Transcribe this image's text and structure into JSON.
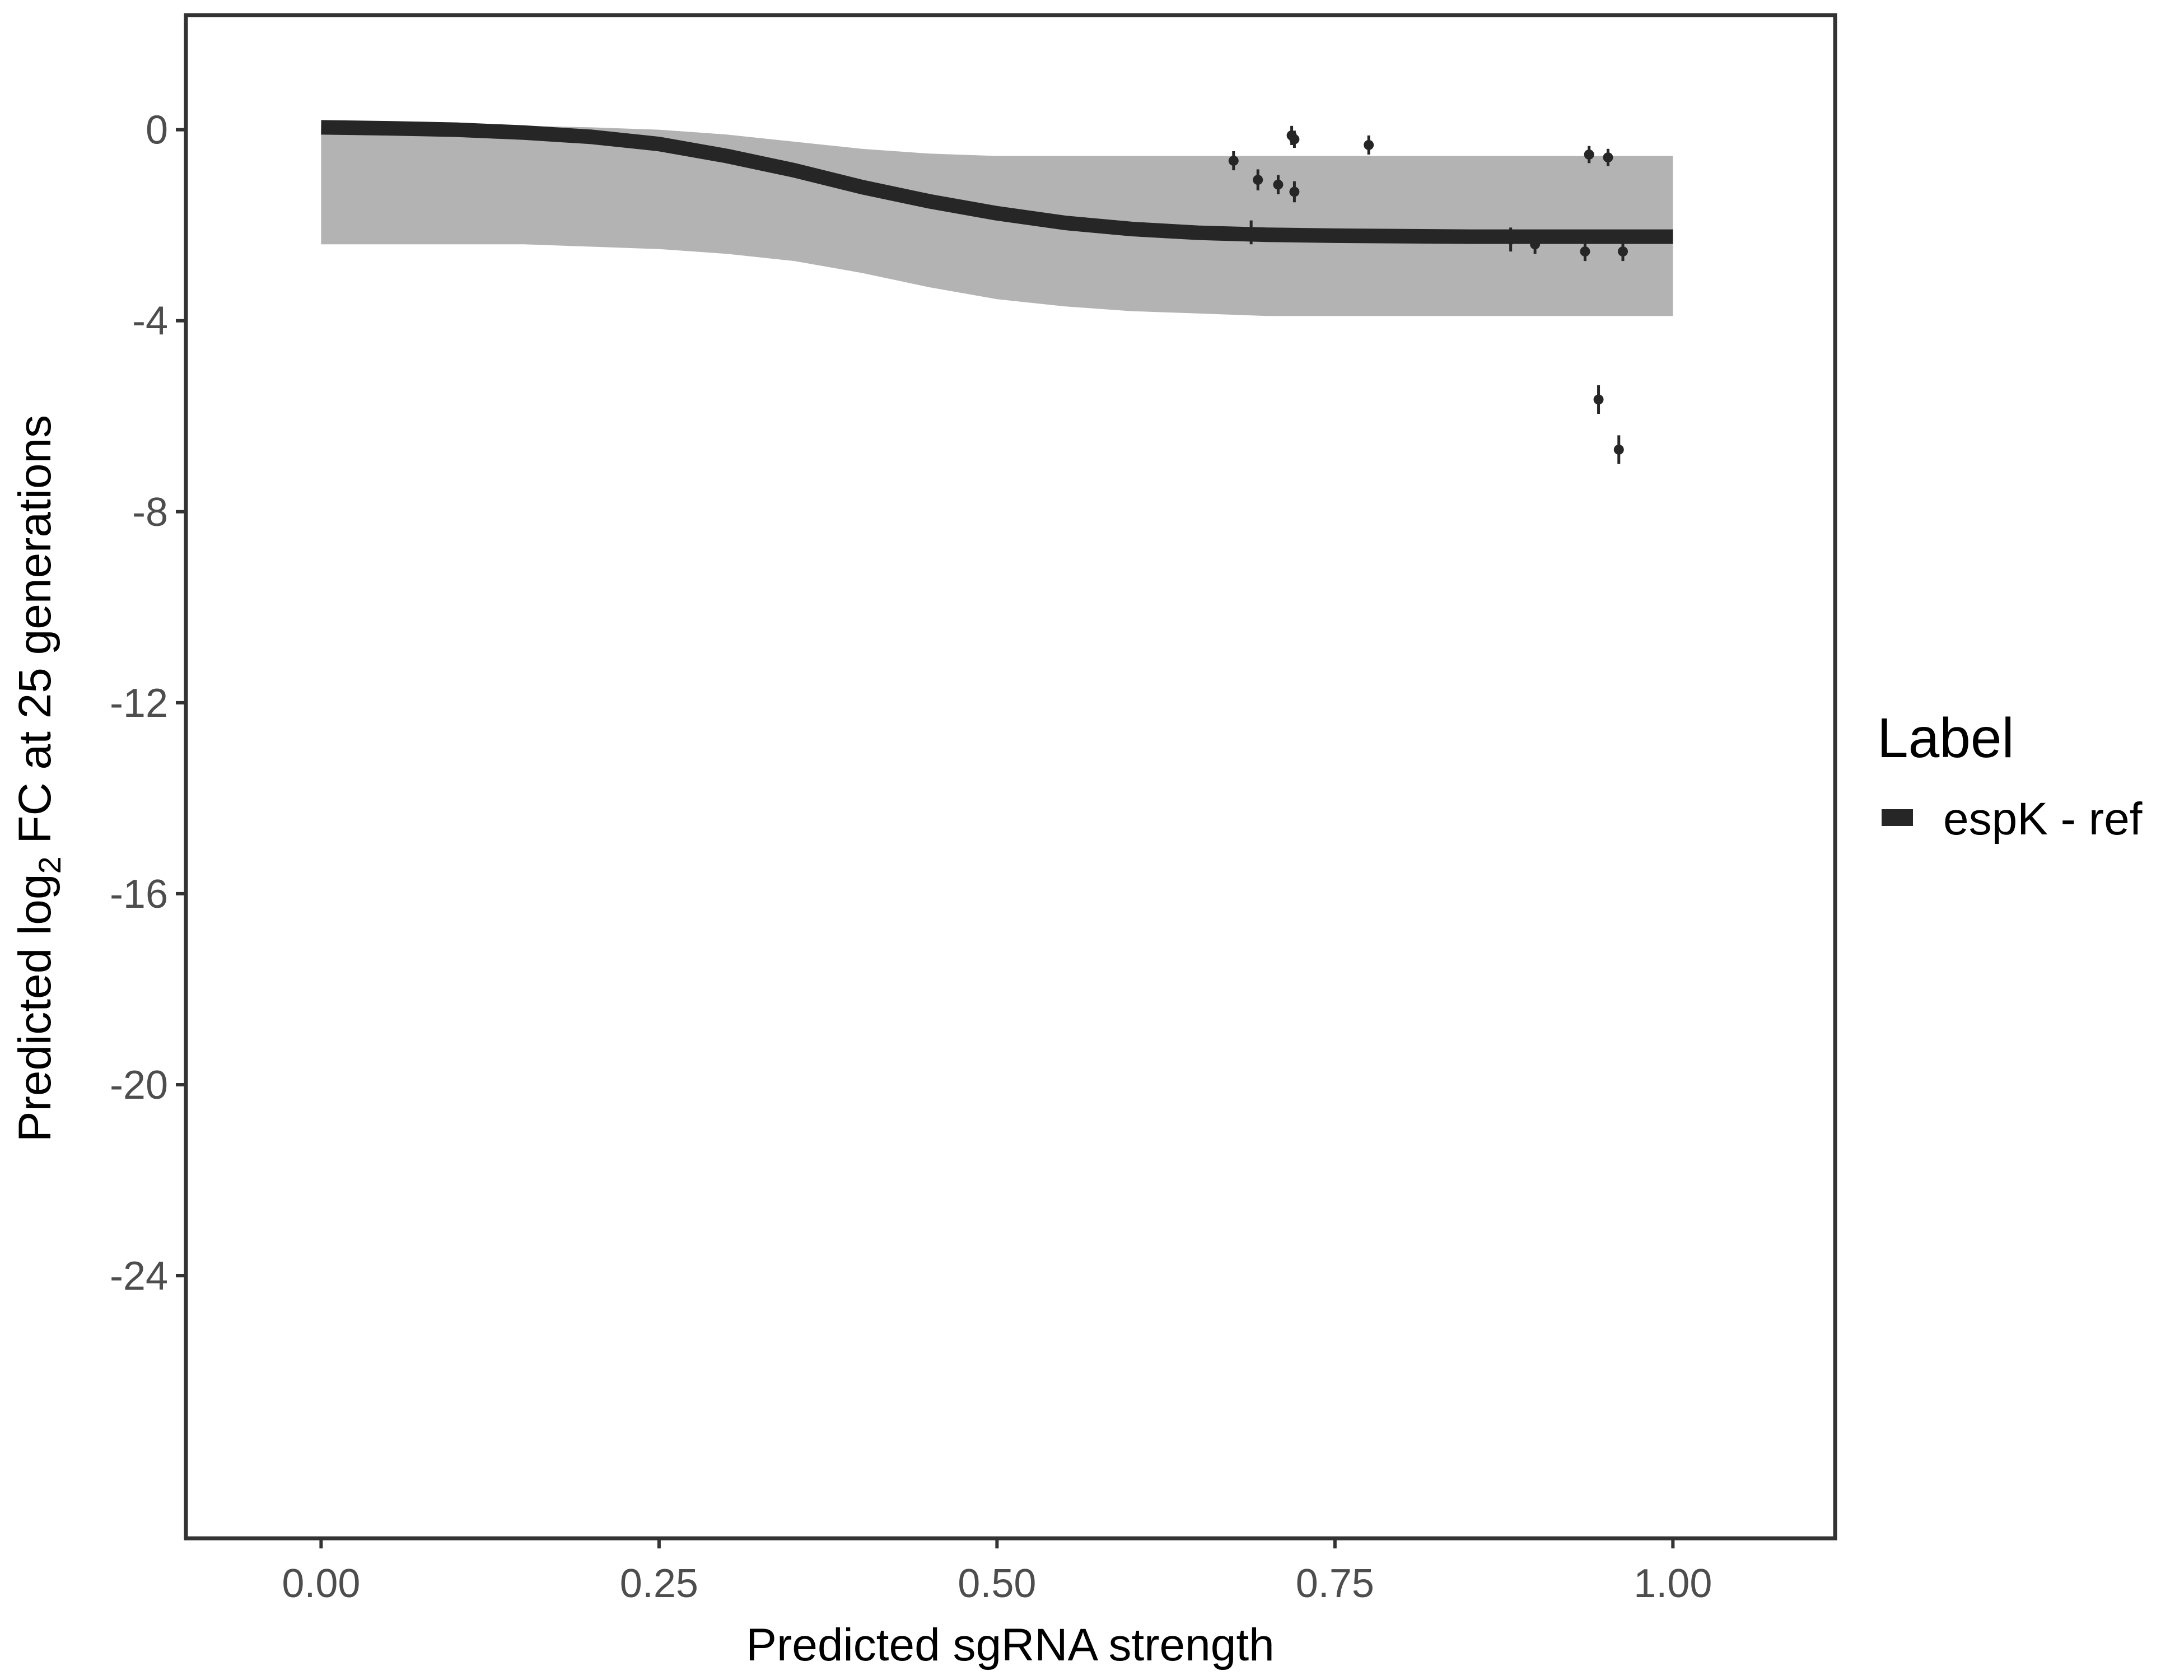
{
  "chart_data": {
    "type": "line",
    "xlabel": "Predicted sgRNA strength",
    "ylabel_prefix": "Predicted  log",
    "ylabel_subscript": "2",
    "ylabel_suffix": " FC at 25 generations",
    "xlim": [
      -0.1,
      1.12
    ],
    "ylim": [
      -29.5,
      2.4
    ],
    "x_ticks": [
      0,
      0.25,
      0.5,
      0.75,
      1
    ],
    "x_tick_labels": [
      "0.00",
      "0.25",
      "0.50",
      "0.75",
      "1.00"
    ],
    "y_ticks": [
      0,
      -4,
      -8,
      -12,
      -16,
      -20,
      -24
    ],
    "y_tick_labels": [
      "0",
      "-4",
      "-8",
      "-12",
      "-16",
      "-20",
      "-24"
    ],
    "grid": false,
    "legend": {
      "title": "Label",
      "position": "right",
      "entries": [
        {
          "label": "espK - ref",
          "color": "#262626"
        }
      ]
    },
    "series": [
      {
        "name": "espK - ref",
        "color": "#262626",
        "x": [
          0,
          0.05,
          0.1,
          0.15,
          0.2,
          0.25,
          0.3,
          0.35,
          0.4,
          0.45,
          0.5,
          0.55,
          0.6,
          0.65,
          0.7,
          0.75,
          0.8,
          0.85,
          0.9,
          0.95,
          1
        ],
        "y": [
          0.05,
          0.03,
          0.0,
          -0.06,
          -0.15,
          -0.3,
          -0.55,
          -0.85,
          -1.2,
          -1.5,
          -1.75,
          -1.95,
          -2.08,
          -2.16,
          -2.2,
          -2.22,
          -2.23,
          -2.24,
          -2.24,
          -2.24,
          -2.24
        ]
      }
    ],
    "posterior_band": {
      "color": "#a6a6a6",
      "x": [
        0,
        0.05,
        0.1,
        0.15,
        0.2,
        0.25,
        0.3,
        0.35,
        0.4,
        0.45,
        0.5,
        0.55,
        0.6,
        0.65,
        0.7,
        0.75,
        0.8,
        0.85,
        0.9,
        0.95,
        1
      ],
      "upper": [
        0.1,
        0.1,
        0.1,
        0.08,
        0.05,
        0.0,
        -0.1,
        -0.25,
        -0.4,
        -0.5,
        -0.55,
        -0.55,
        -0.55,
        -0.55,
        -0.55,
        -0.55,
        -0.55,
        -0.55,
        -0.55,
        -0.55,
        -0.55
      ],
      "lower": [
        -2.4,
        -2.4,
        -2.4,
        -2.4,
        -2.45,
        -2.5,
        -2.6,
        -2.75,
        -3.0,
        -3.3,
        -3.55,
        -3.7,
        -3.8,
        -3.85,
        -3.9,
        -3.9,
        -3.9,
        -3.9,
        -3.9,
        -3.9,
        -3.9
      ]
    },
    "points": [
      {
        "x": 0.675,
        "y": -0.65,
        "err": 0.2
      },
      {
        "x": 0.688,
        "y": -2.15,
        "err": 0.25
      },
      {
        "x": 0.693,
        "y": -1.05,
        "err": 0.22
      },
      {
        "x": 0.708,
        "y": -1.15,
        "err": 0.2
      },
      {
        "x": 0.718,
        "y": -0.12,
        "err": 0.2
      },
      {
        "x": 0.72,
        "y": -0.2,
        "err": 0.18
      },
      {
        "x": 0.72,
        "y": -1.3,
        "err": 0.22
      },
      {
        "x": 0.775,
        "y": -0.32,
        "err": 0.2
      },
      {
        "x": 0.88,
        "y": -2.3,
        "err": 0.25
      },
      {
        "x": 0.898,
        "y": -2.4,
        "err": 0.2
      },
      {
        "x": 0.935,
        "y": -2.55,
        "err": 0.2
      },
      {
        "x": 0.938,
        "y": -0.52,
        "err": 0.18
      },
      {
        "x": 0.945,
        "y": -5.65,
        "err": 0.3
      },
      {
        "x": 0.952,
        "y": -0.58,
        "err": 0.18
      },
      {
        "x": 0.96,
        "y": -6.7,
        "err": 0.3
      },
      {
        "x": 0.963,
        "y": -2.55,
        "err": 0.2
      }
    ]
  }
}
